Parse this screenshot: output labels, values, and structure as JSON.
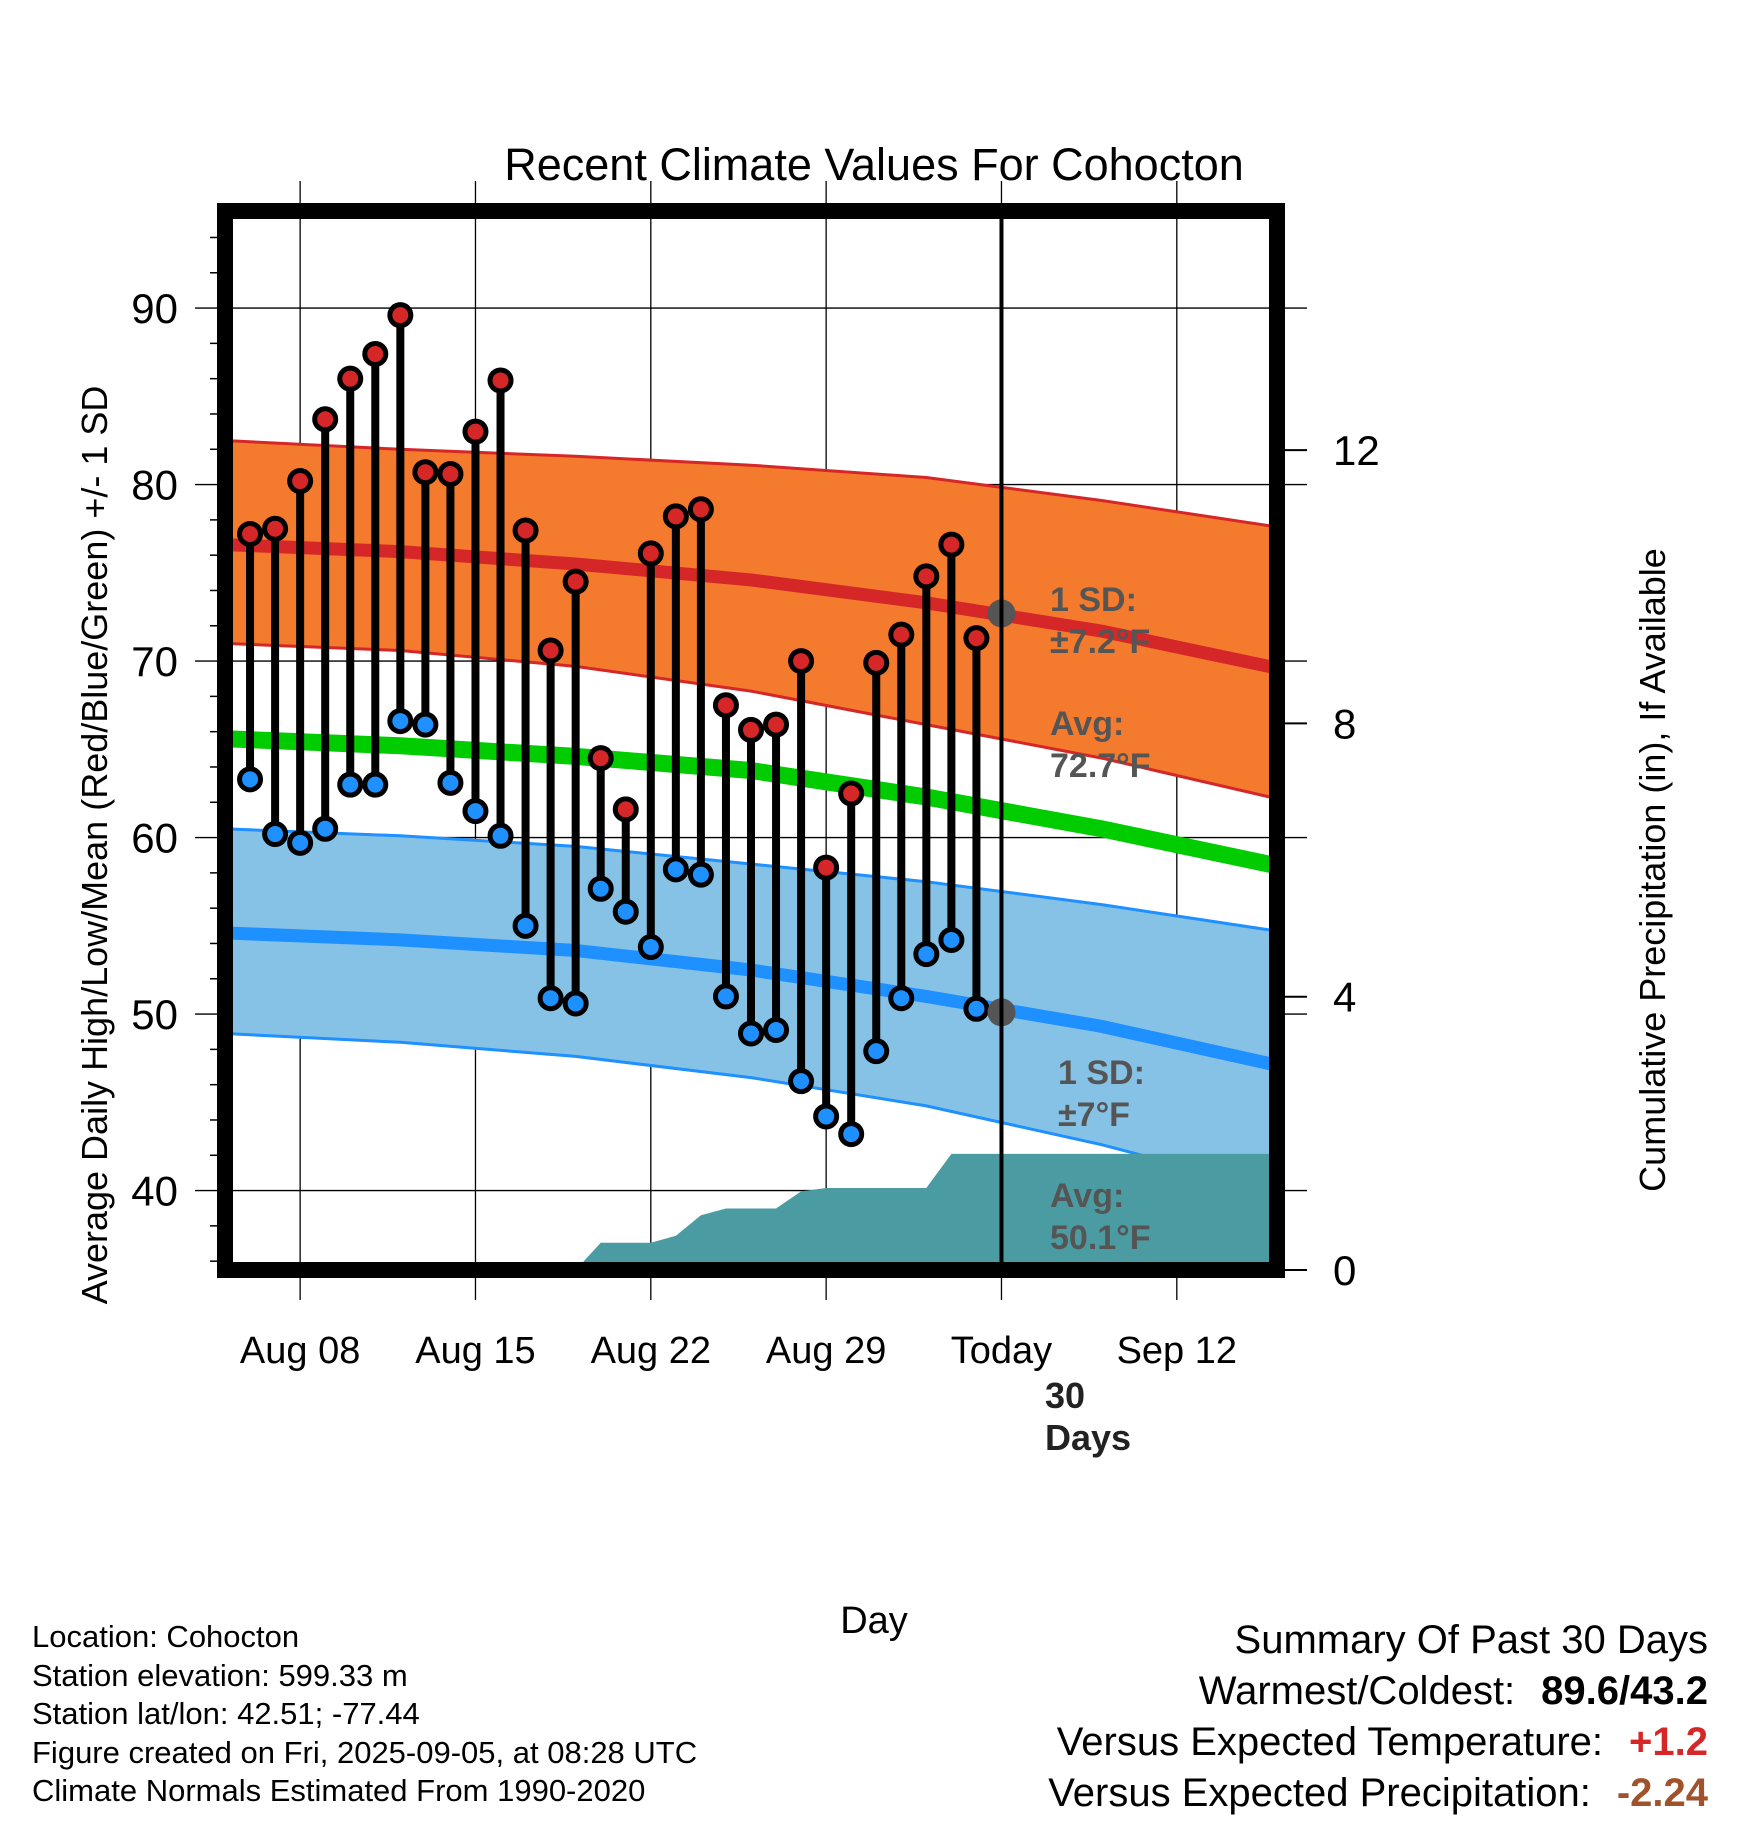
{
  "chart_data": {
    "type": "line",
    "title": "Recent Climate Values For Cohocton",
    "xlabel": "Day",
    "ylabel": "Average Daily High/Low/Mean (Red/Blue/Green) +/- 1 SD",
    "y2label": "Cumulative Precipitation (in), If Available",
    "ylim": [
      35.5,
      95.5
    ],
    "y2lim": [
      0,
      15.5
    ],
    "xlim_days": [
      "2025-08-05",
      "2025-09-16"
    ],
    "x_tick_labels": [
      "Aug 08",
      "Aug 15",
      "Aug 22",
      "Aug 29",
      "Today",
      "Sep 12"
    ],
    "x_tick_dates": [
      "2025-08-08",
      "2025-08-15",
      "2025-08-22",
      "2025-08-29",
      "2025-09-05",
      "2025-09-12"
    ],
    "y_tick_labels": [
      "40",
      "50",
      "60",
      "70",
      "80",
      "90"
    ],
    "y2_tick_labels": [
      "0",
      "4",
      "8",
      "12"
    ],
    "today": "2025-09-05",
    "grid": true,
    "colors": {
      "high": "#d62728",
      "low": "#1e90ff",
      "mean": "#00cc00",
      "high_band": "#f47a2e",
      "low_band": "#85c2e6",
      "precip": "#4a9ba2",
      "avg_marker": "#555555"
    },
    "series": [
      {
        "name": "Daily High",
        "dates": [
          "2025-08-06",
          "2025-08-07",
          "2025-08-08",
          "2025-08-09",
          "2025-08-10",
          "2025-08-11",
          "2025-08-12",
          "2025-08-13",
          "2025-08-14",
          "2025-08-15",
          "2025-08-16",
          "2025-08-17",
          "2025-08-18",
          "2025-08-19",
          "2025-08-20",
          "2025-08-21",
          "2025-08-22",
          "2025-08-23",
          "2025-08-24",
          "2025-08-25",
          "2025-08-26",
          "2025-08-27",
          "2025-08-28",
          "2025-08-29",
          "2025-08-30",
          "2025-08-31",
          "2025-09-01",
          "2025-09-02",
          "2025-09-03",
          "2025-09-04"
        ],
        "values": [
          77.2,
          77.5,
          80.2,
          83.7,
          86.0,
          87.4,
          89.6,
          80.7,
          80.6,
          83.0,
          85.9,
          77.4,
          70.6,
          74.5,
          64.5,
          61.6,
          76.1,
          78.2,
          78.6,
          67.5,
          66.1,
          66.4,
          70.0,
          58.3,
          62.5,
          69.9,
          71.5,
          74.8,
          76.6,
          71.3
        ]
      },
      {
        "name": "Daily Low",
        "dates": [
          "2025-08-06",
          "2025-08-07",
          "2025-08-08",
          "2025-08-09",
          "2025-08-10",
          "2025-08-11",
          "2025-08-12",
          "2025-08-13",
          "2025-08-14",
          "2025-08-15",
          "2025-08-16",
          "2025-08-17",
          "2025-08-18",
          "2025-08-19",
          "2025-08-20",
          "2025-08-21",
          "2025-08-22",
          "2025-08-23",
          "2025-08-24",
          "2025-08-25",
          "2025-08-26",
          "2025-08-27",
          "2025-08-28",
          "2025-08-29",
          "2025-08-30",
          "2025-08-31",
          "2025-09-01",
          "2025-09-02",
          "2025-09-03",
          "2025-09-04"
        ],
        "values": [
          63.3,
          60.2,
          59.7,
          60.5,
          63.0,
          63.0,
          66.6,
          66.4,
          63.1,
          61.5,
          60.1,
          55.0,
          50.9,
          50.6,
          57.1,
          55.8,
          53.8,
          58.2,
          57.9,
          51.0,
          48.9,
          49.1,
          46.2,
          44.2,
          43.2,
          47.9,
          50.9,
          53.4,
          54.2,
          50.3
        ]
      },
      {
        "name": "Normal High",
        "dates": [
          "2025-08-05",
          "2025-08-12",
          "2025-08-19",
          "2025-08-26",
          "2025-09-02",
          "2025-09-09",
          "2025-09-16"
        ],
        "values": [
          76.6,
          76.2,
          75.5,
          74.6,
          73.3,
          71.7,
          69.6
        ]
      },
      {
        "name": "Normal High +1 SD",
        "dates": [
          "2025-08-05",
          "2025-08-12",
          "2025-08-19",
          "2025-08-26",
          "2025-09-02",
          "2025-09-09",
          "2025-09-16"
        ],
        "values": [
          82.5,
          82.0,
          81.6,
          81.1,
          80.4,
          79.1,
          77.6
        ]
      },
      {
        "name": "Normal High -1 SD",
        "dates": [
          "2025-08-05",
          "2025-08-12",
          "2025-08-19",
          "2025-08-26",
          "2025-09-02",
          "2025-09-09",
          "2025-09-16"
        ],
        "values": [
          71.0,
          70.6,
          69.7,
          68.3,
          66.4,
          64.5,
          62.2
        ]
      },
      {
        "name": "Normal Mean",
        "dates": [
          "2025-08-05",
          "2025-08-12",
          "2025-08-19",
          "2025-08-26",
          "2025-09-02",
          "2025-09-09",
          "2025-09-16"
        ],
        "values": [
          65.6,
          65.2,
          64.6,
          63.8,
          62.3,
          60.5,
          58.4
        ]
      },
      {
        "name": "Normal Low",
        "dates": [
          "2025-08-05",
          "2025-08-12",
          "2025-08-19",
          "2025-08-26",
          "2025-09-02",
          "2025-09-09",
          "2025-09-16"
        ],
        "values": [
          54.6,
          54.2,
          53.6,
          52.5,
          51.0,
          49.3,
          47.1
        ]
      },
      {
        "name": "Normal Low +1 SD",
        "dates": [
          "2025-08-05",
          "2025-08-12",
          "2025-08-19",
          "2025-08-26",
          "2025-09-02",
          "2025-09-09",
          "2025-09-16"
        ],
        "values": [
          60.5,
          60.1,
          59.5,
          58.5,
          57.5,
          56.2,
          54.7
        ]
      },
      {
        "name": "Normal Low -1 SD",
        "dates": [
          "2025-08-05",
          "2025-08-12",
          "2025-08-19",
          "2025-08-26",
          "2025-09-02",
          "2025-09-09",
          "2025-09-16"
        ],
        "values": [
          48.9,
          48.4,
          47.6,
          46.4,
          44.8,
          42.6,
          40.0
        ]
      },
      {
        "name": "Cumulative Precipitation",
        "dates": [
          "2025-08-05",
          "2025-08-19",
          "2025-08-20",
          "2025-08-22",
          "2025-08-23",
          "2025-08-24",
          "2025-08-25",
          "2025-08-27",
          "2025-08-28",
          "2025-08-29",
          "2025-09-01",
          "2025-09-02",
          "2025-09-03",
          "2025-09-16"
        ],
        "values": [
          0.0,
          0.0,
          0.4,
          0.4,
          0.5,
          0.8,
          0.9,
          0.9,
          1.15,
          1.2,
          1.2,
          1.2,
          1.7,
          1.7
        ]
      }
    ],
    "annotations": {
      "high_sd": [
        "1 SD:",
        "±7.2°F"
      ],
      "high_avg": [
        "Avg:",
        "72.7°F"
      ],
      "low_sd": [
        "1 SD:",
        "±7°F"
      ],
      "low_avg": [
        "Avg:",
        "50.1°F"
      ],
      "precip_label": [
        "30",
        "Days"
      ],
      "today_high_avg": 72.7,
      "today_low_avg": 50.1
    }
  },
  "info": {
    "location": "Location: Cohocton",
    "elevation": "Station elevation: 599.33 m",
    "latlon": "Station lat/lon: 42.51; -77.44",
    "created": "Figure created on Fri, 2025-09-05, at 08:28 UTC",
    "normals": "Climate Normals Estimated From 1990-2020"
  },
  "summary": {
    "title": "Summary Of Past 30 Days",
    "warmest_label": "Warmest/Coldest:",
    "warmest_value": "89.6/43.2",
    "temp_label": "Versus Expected Temperature:",
    "temp_value": "+1.2",
    "precip_label": "Versus Expected Precipitation:",
    "precip_value": "-2.24"
  }
}
